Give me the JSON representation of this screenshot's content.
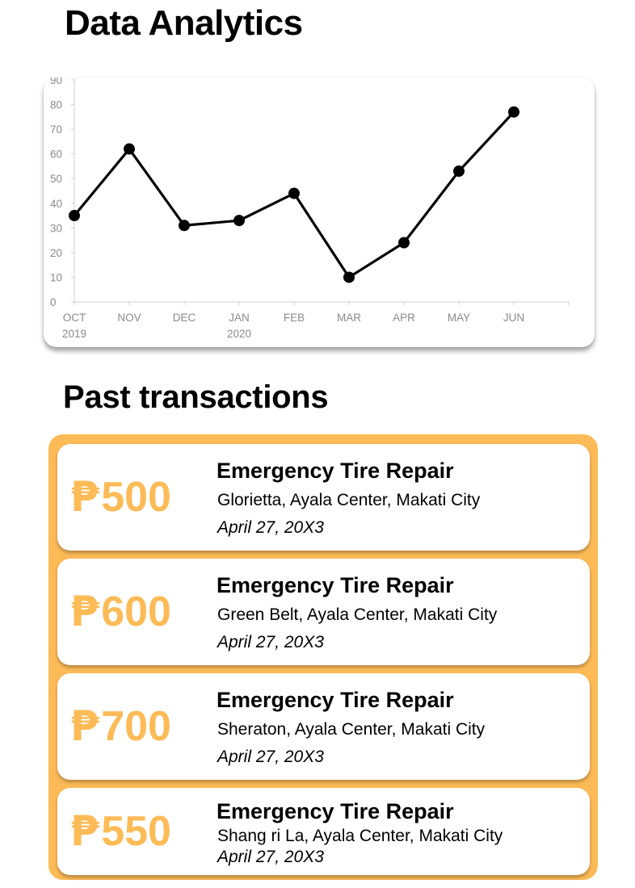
{
  "page_title": "Data Analytics",
  "section_title": "Past transactions",
  "colors": {
    "accent": "#fdbb57",
    "line": "#000000",
    "axis_text": "#8a8a8a"
  },
  "chart_data": {
    "type": "line",
    "categories": [
      "OCT\n2019",
      "NOV",
      "DEC",
      "JAN\n2020",
      "FEB",
      "MAR",
      "APR",
      "MAY",
      "JUN"
    ],
    "series": [
      {
        "values": [
          35,
          62,
          31,
          33,
          44,
          10,
          24,
          53,
          77
        ]
      }
    ],
    "ylim": [
      0,
      90
    ],
    "yticks": [
      0,
      10,
      20,
      30,
      40,
      50,
      60,
      70,
      80,
      90
    ],
    "grid": false
  },
  "transactions": [
    {
      "currency": "₱",
      "amount": "500",
      "service": "Emergency Tire Repair",
      "location": "Glorietta, Ayala Center, Makati City",
      "date": "April 27, 20X3"
    },
    {
      "currency": "₱",
      "amount": "600",
      "service": "Emergency Tire Repair",
      "location": "Green Belt, Ayala Center, Makati City",
      "date": "April 27, 20X3"
    },
    {
      "currency": "₱",
      "amount": "700",
      "service": "Emergency Tire Repair",
      "location": "Sheraton, Ayala Center, Makati City",
      "date": "April 27, 20X3"
    },
    {
      "currency": "₱",
      "amount": "550",
      "service": "Emergency Tire Repair",
      "location": "Shang ri La, Ayala Center, Makati City",
      "date": "April 27, 20X3"
    }
  ]
}
